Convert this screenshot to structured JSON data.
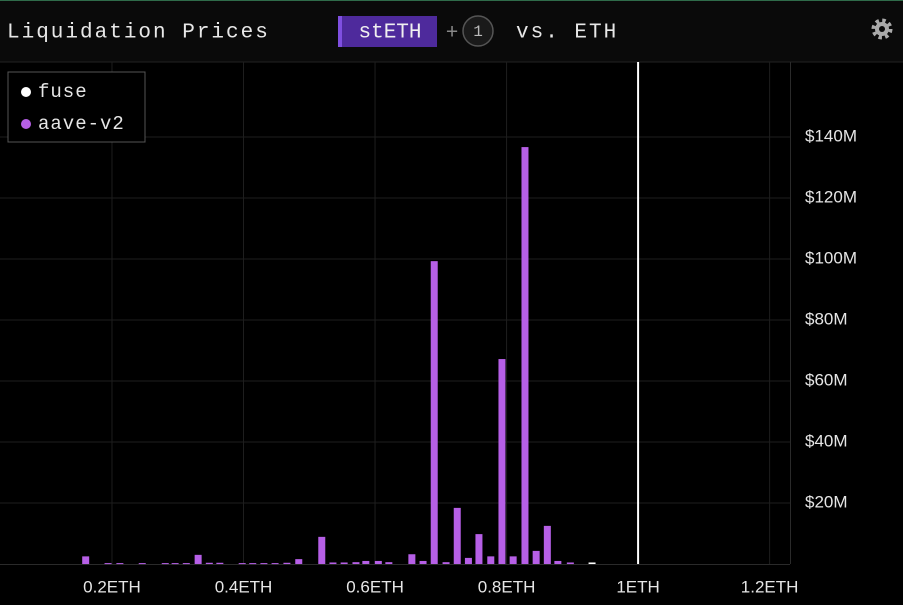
{
  "chart_data": {
    "type": "bar",
    "title": "Liquidation Prices",
    "asset": "stETH",
    "add_label": "+",
    "count": 1,
    "versus": "vs. ETH",
    "x": [
      0.16,
      0.194,
      0.212,
      0.246,
      0.281,
      0.296,
      0.313,
      0.331,
      0.348,
      0.364,
      0.398,
      0.414,
      0.431,
      0.448,
      0.466,
      0.484,
      0.519,
      0.536,
      0.553,
      0.571,
      0.586,
      0.605,
      0.621,
      0.656,
      0.673,
      0.69,
      0.708,
      0.725,
      0.742,
      0.758,
      0.776,
      0.793,
      0.81,
      0.828,
      0.845,
      0.862,
      0.878,
      0.897,
      0.93
    ],
    "series": [
      {
        "name": "fuse",
        "color": "#ffffff",
        "values": [
          null,
          null,
          null,
          null,
          null,
          null,
          null,
          null,
          null,
          null,
          null,
          null,
          null,
          null,
          null,
          null,
          null,
          null,
          null,
          null,
          null,
          null,
          null,
          null,
          null,
          null,
          null,
          null,
          null,
          null,
          null,
          null,
          null,
          null,
          null,
          null,
          null,
          null,
          500000
        ]
      },
      {
        "name": "aave-v2",
        "color": "#b65fe6",
        "values": [
          2500000,
          300000,
          300000,
          300000,
          300000,
          300000,
          300000,
          3000000,
          400000,
          400000,
          300000,
          300000,
          300000,
          300000,
          400000,
          1600000,
          8900000,
          500000,
          500000,
          600000,
          1000000,
          1000000,
          600000,
          3200000,
          1000000,
          99300000,
          600000,
          18400000,
          2000000,
          9800000,
          2500000,
          67200000,
          2500000,
          136700000,
          4300000,
          12500000,
          1000000,
          500000,
          null
        ]
      }
    ],
    "reference_x": 1,
    "xlim": [
      0.0297,
      1.231
    ],
    "xticks": [
      {
        "value": 0.2,
        "label": "0.2ETH"
      },
      {
        "value": 0.4,
        "label": "0.4ETH"
      },
      {
        "value": 0.6,
        "label": "0.6ETH"
      },
      {
        "value": 0.8,
        "label": "0.8ETH"
      },
      {
        "value": 1,
        "label": "1ETH"
      },
      {
        "value": 1.2,
        "label": "1.2ETH"
      }
    ],
    "ylim": [
      0,
      164600000
    ],
    "yticks": [
      {
        "value": 20000000,
        "label": "$20M"
      },
      {
        "value": 40000000,
        "label": "$40M"
      },
      {
        "value": 60000000,
        "label": "$60M"
      },
      {
        "value": 80000000,
        "label": "$80M"
      },
      {
        "value": 100000000,
        "label": "$100M"
      },
      {
        "value": 120000000,
        "label": "$120M"
      },
      {
        "value": 140000000,
        "label": "$140M"
      }
    ],
    "grid": true
  }
}
